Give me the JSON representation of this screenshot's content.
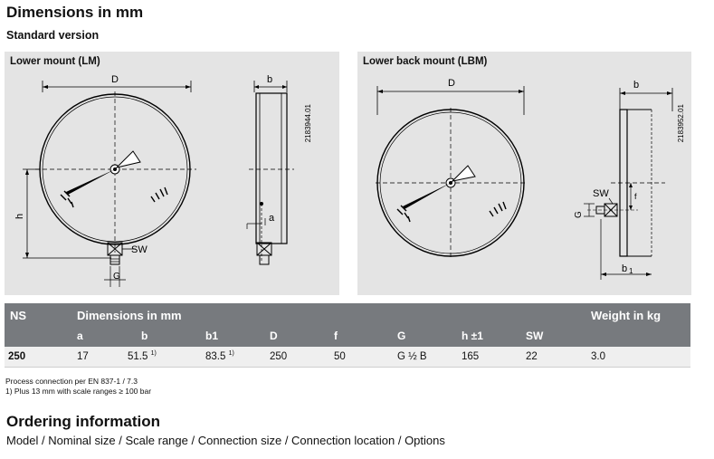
{
  "title": "Dimensions in mm",
  "subtitle": "Standard version",
  "panels": {
    "lm": {
      "title": "Lower mount (LM)",
      "code": "2183944.01",
      "labels": {
        "D": "D",
        "b": "b",
        "h": "h",
        "sw": "SW",
        "g": "G",
        "a": "a"
      }
    },
    "lbm": {
      "title": "Lower back mount (LBM)",
      "code": "2183952.01",
      "labels": {
        "D": "D",
        "b": "b",
        "sw": "SW",
        "g": "G",
        "f": "f",
        "b1": "b"
      }
    }
  },
  "table": {
    "header_ns": "NS",
    "header_dims": "Dimensions in mm",
    "header_weight": "Weight in kg",
    "cols": {
      "a": "a",
      "b": "b",
      "b1": "b1",
      "D": "D",
      "f": "f",
      "G": "G",
      "h": "h ±1",
      "SW": "SW"
    },
    "row": {
      "ns": "250",
      "a": "17",
      "b": "51.5",
      "b_sup": "1)",
      "b1": "83.5",
      "b1_sup": "1)",
      "D": "250",
      "f": "50",
      "G": "G ½ B",
      "h": "165",
      "SW": "22",
      "weight": "3.0"
    }
  },
  "footnotes": [
    "Process connection per EN 837-1 / 7.3",
    "1) Plus 13 mm with scale ranges ≥ 100 bar"
  ],
  "ordering": {
    "title": "Ordering information",
    "text": "Model / Nominal size / Scale range / Connection size / Connection location / Options"
  }
}
